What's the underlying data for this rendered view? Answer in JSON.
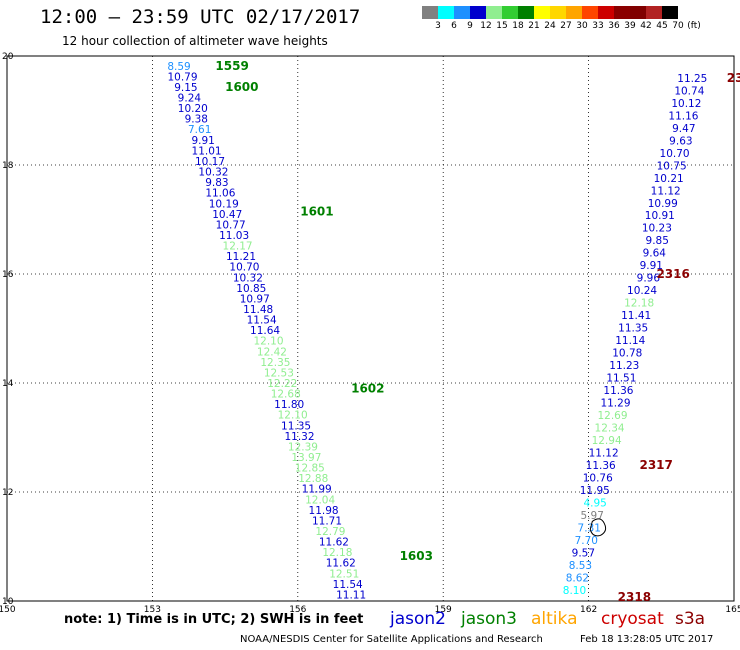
{
  "header": {
    "title": "12:00 — 23:59 UTC 02/17/2017",
    "subtitle": "12 hour collection of altimeter wave heights"
  },
  "colorbar": {
    "labels": [
      "3",
      "6",
      "9",
      "12",
      "15",
      "18",
      "21",
      "24",
      "27",
      "30",
      "33",
      "36",
      "39",
      "42",
      "45",
      "70",
      "(ft)"
    ],
    "colors": [
      "#808080",
      "#00ffff",
      "#1e90ff",
      "#0000cd",
      "#90ee90",
      "#32cd32",
      "#008000",
      "#ffff00",
      "#ffd700",
      "#ffa500",
      "#ff4500",
      "#cd0000",
      "#8b0000",
      "#800000",
      "#b22222",
      "#000000"
    ]
  },
  "footer": {
    "note": "note:  1) Time is in UTC;  2) SWH is in feet",
    "missions": [
      {
        "name": "jason2",
        "color": "#0000cd"
      },
      {
        "name": "jason3",
        "color": "#008000"
      },
      {
        "name": "altika",
        "color": "#ffa500"
      },
      {
        "name": "cryosat",
        "color": "#cd0000"
      },
      {
        "name": "s3a",
        "color": "#8b0000"
      }
    ],
    "credit": "NOAA/NESDIS Center for Satellite Applications and Research",
    "timestamp": "Feb 18 13:28:05 UTC 2017"
  },
  "chart_data": {
    "type": "scatter",
    "title": "12:00 — 23:59 UTC 02/17/2017",
    "subtitle": "12 hour collection of altimeter wave heights",
    "xlim": [
      150,
      165
    ],
    "ylim": [
      10,
      20
    ],
    "x_ticks": [
      "150",
      "153",
      "156",
      "159",
      "162",
      "165"
    ],
    "y_ticks": [
      "10",
      "12",
      "14",
      "16",
      "18",
      "20"
    ],
    "grid": true,
    "units": "ft",
    "track_left": {
      "x_start": 153.55,
      "y_start": 19.82,
      "x_end": 157.1,
      "y_end": 10.12,
      "values": [
        "8.59",
        "10.79",
        "9.15",
        "9.24",
        "10.20",
        "9.38",
        "7.61",
        "9.91",
        "11.01",
        "10.17",
        "10.32",
        "9.83",
        "11.06",
        "10.19",
        "10.47",
        "10.77",
        "11.03",
        "12.17",
        "11.21",
        "10.70",
        "10.32",
        "10.85",
        "10.97",
        "11.48",
        "11.54",
        "11.64",
        "12.10",
        "12.42",
        "12.35",
        "12.53",
        "12.22",
        "12.68",
        "11.80",
        "12.10",
        "11.35",
        "11.32",
        "12.39",
        "13.97",
        "12.85",
        "12.88",
        "11.99",
        "12.04",
        "11.98",
        "11.71",
        "12.79",
        "11.62",
        "12.18",
        "11.62",
        "12.51",
        "11.54",
        "11.11"
      ],
      "colors": [
        "#1e90ff",
        "#0000cd",
        "#0000cd",
        "#0000cd",
        "#0000cd",
        "#0000cd",
        "#1e90ff",
        "#0000cd",
        "#0000cd",
        "#0000cd",
        "#0000cd",
        "#0000cd",
        "#0000cd",
        "#0000cd",
        "#0000cd",
        "#0000cd",
        "#0000cd",
        "#90ee90",
        "#0000cd",
        "#0000cd",
        "#0000cd",
        "#0000cd",
        "#0000cd",
        "#0000cd",
        "#0000cd",
        "#0000cd",
        "#90ee90",
        "#90ee90",
        "#90ee90",
        "#90ee90",
        "#90ee90",
        "#90ee90",
        "#0000cd",
        "#90ee90",
        "#0000cd",
        "#0000cd",
        "#90ee90",
        "#90ee90",
        "#90ee90",
        "#90ee90",
        "#0000cd",
        "#90ee90",
        "#0000cd",
        "#0000cd",
        "#90ee90",
        "#0000cd",
        "#90ee90",
        "#0000cd",
        "#90ee90",
        "#0000cd",
        "#0000cd"
      ],
      "time_labels": [
        {
          "text": "1559",
          "x": 154.3,
          "y": 19.82
        },
        {
          "text": "1600",
          "x": 154.5,
          "y": 19.43
        },
        {
          "text": "1601",
          "x": 156.05,
          "y": 17.15
        },
        {
          "text": "1602",
          "x": 157.1,
          "y": 13.9
        },
        {
          "text": "1603",
          "x": 158.1,
          "y": 10.83
        }
      ]
    },
    "track_right": {
      "x_start": 164.45,
      "y_start": 19.6,
      "x_end": 161.95,
      "y_end": 10.2,
      "values": [
        "11.25",
        "10.74",
        "10.12",
        "11.16",
        "9.47",
        "9.63",
        "10.70",
        "10.75",
        "10.21",
        "11.12",
        "10.99",
        "10.91",
        "10.23",
        "9.85",
        "9.64",
        "9.91",
        "9.96",
        "10.24",
        "12.18",
        "11.41",
        "11.35",
        "11.14",
        "10.78",
        "11.23",
        "11.51",
        "11.36",
        "11.29",
        "12.69",
        "12.34",
        "12.94",
        "11.12",
        "11.36",
        "10.76",
        "11.95",
        "4.95",
        "5.97",
        "7.31",
        "7.70",
        "9.57",
        "8.53",
        "8.62",
        "8.10"
      ],
      "colors": [
        "#0000cd",
        "#0000cd",
        "#0000cd",
        "#0000cd",
        "#0000cd",
        "#0000cd",
        "#0000cd",
        "#0000cd",
        "#0000cd",
        "#0000cd",
        "#0000cd",
        "#0000cd",
        "#0000cd",
        "#0000cd",
        "#0000cd",
        "#0000cd",
        "#0000cd",
        "#0000cd",
        "#90ee90",
        "#0000cd",
        "#0000cd",
        "#0000cd",
        "#0000cd",
        "#0000cd",
        "#0000cd",
        "#0000cd",
        "#0000cd",
        "#90ee90",
        "#90ee90",
        "#90ee90",
        "#0000cd",
        "#0000cd",
        "#0000cd",
        "#0000cd",
        "#00ffff",
        "#808080",
        "#1e90ff",
        "#1e90ff",
        "#0000cd",
        "#1e90ff",
        "#1e90ff",
        "#00ffff"
      ],
      "time_labels": [
        {
          "text": "23",
          "x": 164.85,
          "y": 19.6
        },
        {
          "text": "2316",
          "x": 163.4,
          "y": 16.0
        },
        {
          "text": "2317",
          "x": 163.05,
          "y": 12.5
        },
        {
          "text": "2318",
          "x": 162.6,
          "y": 10.07
        }
      ]
    },
    "land_outline": {
      "x": 162.2,
      "y": 11.35
    }
  }
}
